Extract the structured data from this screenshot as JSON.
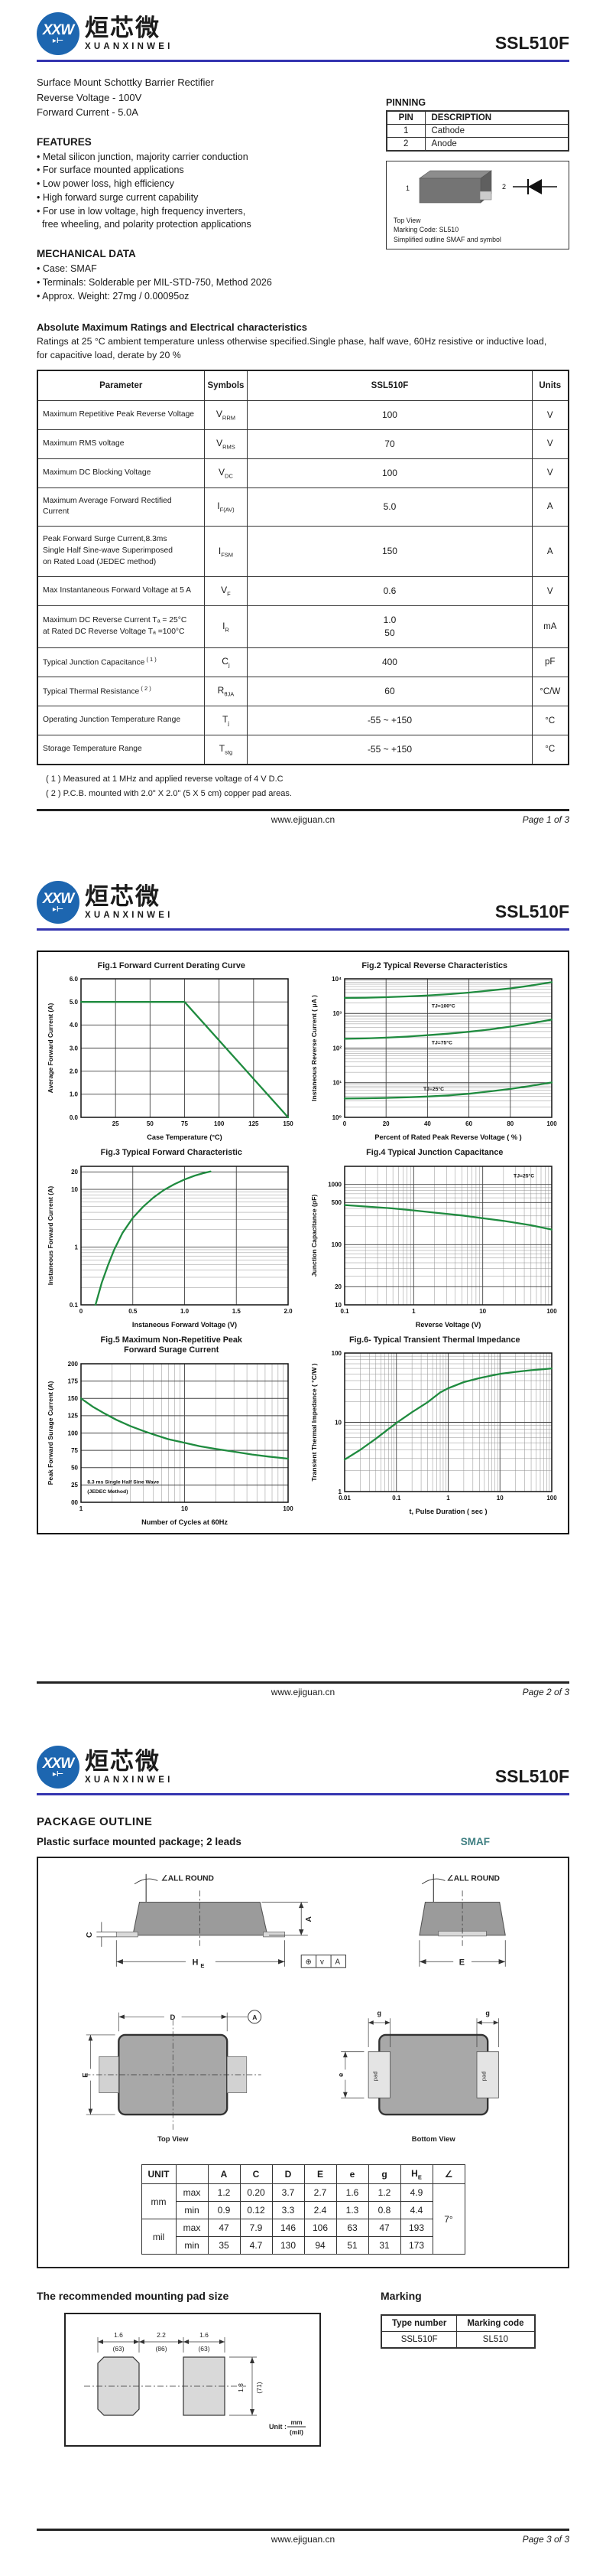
{
  "brand": {
    "logo_monogram": "XXW",
    "logo_diode": "▸⊢",
    "logo_cn": "烜芯微",
    "logo_en": "XUANXINWEI",
    "part_number": "SSL510F"
  },
  "footer": {
    "url": "www.ejiguan.cn",
    "page1": "Page  1  of  3",
    "page2": "Page  2  of  3",
    "page3": "Page  3  of  3"
  },
  "page1": {
    "intro": [
      "Surface Mount Schottky Barrier Rectifier",
      "Reverse Voltage - 100V",
      "Forward Current - 5.0A"
    ],
    "pinning": {
      "title": "PINNING",
      "headers": [
        "PIN",
        "DESCRIPTION"
      ],
      "rows": [
        [
          "1",
          "Cathode"
        ],
        [
          "2",
          "Anode"
        ]
      ],
      "pin1": "1",
      "pin2": "2",
      "captions": [
        "Top View",
        "Marking Code: SL510",
        "Simplified outline SMAF and symbol"
      ]
    },
    "features": {
      "title": "FEATURES",
      "items": [
        "• Metal silicon junction, majority carrier conduction",
        "• For surface mounted applications",
        "• Low power loss, high efficiency",
        "• High forward surge current capability",
        "• For use in low voltage, high frequency inverters,",
        "  free wheeling, and polarity protection applications"
      ]
    },
    "mechanical": {
      "title": "MECHANICAL DATA",
      "items": [
        "• Case: SMAF",
        "• Terminals: Solderable per MIL-STD-750, Method 2026",
        "• Approx. Weight: 27mg  / 0.00095oz"
      ]
    },
    "ratings": {
      "title": "Absolute Maximum Ratings and Electrical characteristics",
      "subtitle": [
        "Ratings at 25 °C ambient temperature unless otherwise specified.Single phase, half wave, 60Hz resistive or inductive load,",
        "for capacitive load, derate by 20 %"
      ],
      "headers": [
        "Parameter",
        "Symbols",
        "SSL510F",
        "Units"
      ],
      "rows": [
        {
          "param": [
            "Maximum Repetitive Peak Reverse Voltage"
          ],
          "sym": "V",
          "sub": "RRM",
          "value": [
            "100"
          ],
          "unit": "V"
        },
        {
          "param": [
            "Maximum RMS voltage"
          ],
          "sym": "V",
          "sub": "RMS",
          "value": [
            "70"
          ],
          "unit": "V"
        },
        {
          "param": [
            "Maximum DC Blocking Voltage"
          ],
          "sym": "V",
          "sub": "DC",
          "value": [
            "100"
          ],
          "unit": "V"
        },
        {
          "param": [
            "Maximum Average Forward Rectified Current"
          ],
          "sym": "I",
          "sub": "F(AV)",
          "value": [
            "5.0"
          ],
          "unit": "A"
        },
        {
          "param": [
            "Peak Forward Surge Current,8.3ms",
            "Single Half Sine-wave Superimposed",
            "on Rated Load (JEDEC method)"
          ],
          "sym": "I",
          "sub": "FSM",
          "value": [
            "150"
          ],
          "unit": "A"
        },
        {
          "param": [
            "Max Instantaneous Forward Voltage at 5 A"
          ],
          "sym": "V",
          "sub": "F",
          "value": [
            "0.6"
          ],
          "unit": "V"
        },
        {
          "param": [
            "Maximum DC Reverse Current    Tₐ = 25°C",
            "at Rated DC Reverse Voltage     Tₐ =100°C"
          ],
          "sym": "I",
          "sub": "R",
          "value": [
            "1.0",
            "50"
          ],
          "unit": "mA"
        },
        {
          "param": [
            "Typical Junction Capacitance"
          ],
          "sup": "( 1 )",
          "sym": "C",
          "sub": "j",
          "value": [
            "400"
          ],
          "unit": "pF"
        },
        {
          "param": [
            "Typical Thermal Resistance"
          ],
          "sup": "( 2 )",
          "sym": "R",
          "sub": "θJA",
          "value": [
            "60"
          ],
          "unit": "°C/W"
        },
        {
          "param": [
            "Operating Junction Temperature Range"
          ],
          "sym": "T",
          "sub": "j",
          "value": [
            "-55 ~ +150"
          ],
          "unit": "°C"
        },
        {
          "param": [
            "Storage Temperature Range"
          ],
          "sym": "T",
          "sub": "stg",
          "value": [
            "-55 ~ +150"
          ],
          "unit": "°C"
        }
      ],
      "notes": [
        "( 1 ) Measured at 1 MHz and applied reverse voltage of 4 V D.C",
        "( 2 ) P.C.B. mounted with 2.0\" X 2.0\" (5 X 5 cm) copper pad areas."
      ]
    }
  },
  "chart_data": [
    {
      "type": "line",
      "title": "Fig.1  Forward Current Derating Curve",
      "xlabel": "Case Temperature (°C)",
      "ylabel": "Average Forward Current (A)",
      "xscale": "linear",
      "yscale": "linear",
      "xlim": [
        0,
        150
      ],
      "ylim": [
        0,
        6
      ],
      "xticks": [
        25,
        50,
        75,
        100,
        125,
        150
      ],
      "xtick_labels": [
        "25",
        "50",
        "75",
        "100",
        "125",
        "150"
      ],
      "yticks": [
        0,
        1,
        2,
        3,
        4,
        5,
        6
      ],
      "ytick_labels": [
        "0.0",
        "1.0",
        "2.0",
        "3.0",
        "4.0",
        "5.0",
        "6.0"
      ],
      "grid": true,
      "legend": "none",
      "color": "#1f8b3f",
      "series": [
        {
          "name": "IF(AV)",
          "points": [
            [
              0,
              5
            ],
            [
              75,
              5
            ],
            [
              150,
              0
            ]
          ]
        }
      ],
      "annotations": []
    },
    {
      "type": "line",
      "title": "Fig.2  Typical Reverse Characteristics",
      "xlabel": "Percent of Rated Peak Reverse Voltage ( % )",
      "ylabel": "Instaneous Reverse Current ( μA )",
      "xscale": "linear",
      "yscale": "log",
      "xlim": [
        0,
        100
      ],
      "ylim": [
        1,
        10000
      ],
      "xticks": [
        0,
        20,
        40,
        60,
        80,
        100
      ],
      "xtick_labels": [
        "0",
        "20",
        "40",
        "60",
        "80",
        "100"
      ],
      "yticks": [
        1,
        10,
        100,
        1000,
        10000
      ],
      "ytick_labels": [
        "10⁰",
        "10¹",
        "10²",
        "10³",
        "10⁴"
      ],
      "grid": true,
      "legend": "inline",
      "color": "#1f8b3f",
      "series": [
        {
          "name": "TJ=100°C",
          "points": [
            [
              0,
              2800
            ],
            [
              10,
              2850
            ],
            [
              20,
              2950
            ],
            [
              30,
              3100
            ],
            [
              40,
              3300
            ],
            [
              50,
              3600
            ],
            [
              60,
              4000
            ],
            [
              70,
              4600
            ],
            [
              80,
              5300
            ],
            [
              90,
              6400
            ],
            [
              100,
              8000
            ]
          ]
        },
        {
          "name": "TJ=75°C",
          "points": [
            [
              0,
              185
            ],
            [
              10,
              190
            ],
            [
              20,
              200
            ],
            [
              30,
              215
            ],
            [
              40,
              235
            ],
            [
              50,
              260
            ],
            [
              60,
              295
            ],
            [
              70,
              345
            ],
            [
              80,
              415
            ],
            [
              90,
              520
            ],
            [
              100,
              660
            ]
          ]
        },
        {
          "name": "TJ=25°C",
          "points": [
            [
              0,
              3.5
            ],
            [
              10,
              3.55
            ],
            [
              20,
              3.65
            ],
            [
              30,
              3.8
            ],
            [
              40,
              4.0
            ],
            [
              50,
              4.3
            ],
            [
              60,
              4.8
            ],
            [
              70,
              5.6
            ],
            [
              80,
              6.6
            ],
            [
              90,
              8.1
            ],
            [
              100,
              10.2
            ]
          ]
        }
      ],
      "annotations": [
        {
          "text": "TJ=100°C",
          "x": 42,
          "y": 1500
        },
        {
          "text": "TJ=75°C",
          "x": 42,
          "y": 128
        },
        {
          "text": "TJ=25°C",
          "x": 38,
          "y": 5.9
        }
      ]
    },
    {
      "type": "line",
      "title": "Fig.3  Typical Forward Characteristic",
      "xlabel": "Instaneous Forward Voltage (V)",
      "ylabel": "Instaneous Forward Current  (A)",
      "xscale": "linear",
      "yscale": "log",
      "xlim": [
        0,
        2
      ],
      "ylim": [
        0.1,
        25
      ],
      "xticks": [
        0,
        0.5,
        1,
        1.5,
        2
      ],
      "xtick_labels": [
        "0",
        "0.5",
        "1.0",
        "1.5",
        "2.0"
      ],
      "yticks": [
        0.1,
        1,
        10,
        20
      ],
      "ytick_labels": [
        "0.1",
        "1",
        "10",
        "20"
      ],
      "grid": true,
      "legend": "none",
      "color": "#1f8b3f",
      "series": [
        {
          "name": "VF",
          "points": [
            [
              0.14,
              0.1
            ],
            [
              0.2,
              0.24
            ],
            [
              0.26,
              0.48
            ],
            [
              0.32,
              0.9
            ],
            [
              0.4,
              1.75
            ],
            [
              0.5,
              3.2
            ],
            [
              0.6,
              5.0
            ],
            [
              0.7,
              7.2
            ],
            [
              0.8,
              9.7
            ],
            [
              0.9,
              12.2
            ],
            [
              1.0,
              14.8
            ],
            [
              1.1,
              17.3
            ],
            [
              1.18,
              19.0
            ],
            [
              1.25,
              20.3
            ]
          ]
        }
      ],
      "annotations": []
    },
    {
      "type": "line",
      "title": "Fig.4  Typical Junction Capacitance",
      "xlabel": "Reverse  Voltage (V)",
      "ylabel": "Junction Capacitance (pF)",
      "xscale": "log",
      "yscale": "log",
      "xlim": [
        0.1,
        100
      ],
      "ylim": [
        10,
        2000
      ],
      "xticks": [
        0.1,
        1,
        10,
        100
      ],
      "xtick_labels": [
        "0.1",
        "1",
        "10",
        "100"
      ],
      "yticks": [
        10,
        20,
        100,
        500,
        1000
      ],
      "ytick_labels": [
        "10",
        "20",
        "100",
        "500",
        "1000"
      ],
      "grid": true,
      "legend": "inline",
      "color": "#1f8b3f",
      "series": [
        {
          "name": "Cj",
          "points": [
            [
              0.1,
              455
            ],
            [
              0.2,
              430
            ],
            [
              0.5,
              400
            ],
            [
              1,
              370
            ],
            [
              2,
              340
            ],
            [
              5,
              305
            ],
            [
              10,
              275
            ],
            [
              20,
              248
            ],
            [
              50,
              210
            ],
            [
              100,
              178
            ]
          ]
        }
      ],
      "annotations": [
        {
          "text": "TJ=25°C",
          "x": 28,
          "y": 1300
        }
      ]
    },
    {
      "type": "line",
      "title": [
        "Fig.5  Maximum Non-Repetitive Peak",
        "Forward Surage Current"
      ],
      "xlabel": "Number of Cycles at 60Hz",
      "ylabel": "Peak Forward Surage Current (A)",
      "xscale": "log",
      "yscale": "linear",
      "xlim": [
        1,
        100
      ],
      "ylim": [
        0,
        200
      ],
      "xticks": [
        1,
        10,
        100
      ],
      "xtick_labels": [
        "1",
        "10",
        "100"
      ],
      "yticks": [
        0,
        25,
        50,
        75,
        100,
        125,
        150,
        175,
        200
      ],
      "ytick_labels": [
        "00",
        "25",
        "50",
        "75",
        "100",
        "125",
        "150",
        "175",
        "200"
      ],
      "grid": true,
      "legend": "none",
      "color": "#1f8b3f",
      "series": [
        {
          "name": "IFSM",
          "points": [
            [
              1,
              150
            ],
            [
              1.3,
              138
            ],
            [
              1.7,
              128
            ],
            [
              2.2,
              119
            ],
            [
              3,
              110
            ],
            [
              4,
              103
            ],
            [
              5,
              98
            ],
            [
              7,
              91
            ],
            [
              10,
              86
            ],
            [
              14,
              81
            ],
            [
              20,
              77
            ],
            [
              30,
              73
            ],
            [
              45,
              69
            ],
            [
              65,
              66
            ],
            [
              100,
              63
            ]
          ]
        }
      ],
      "annotations": [
        {
          "text": "8.3 ms Single Half Sine Wave",
          "x": 1.15,
          "y": 27
        },
        {
          "text": "(JEDEC Method)",
          "x": 1.15,
          "y": 13
        }
      ]
    },
    {
      "type": "line",
      "title": "Fig.6- Typical Transient Thermal Impedance",
      "xlabel": "t, Pulse Duration ( sec )",
      "ylabel": "Transient Thermal Impedance ( °C/W )",
      "xscale": "log",
      "yscale": "log",
      "xlim": [
        0.01,
        100
      ],
      "ylim": [
        1,
        100
      ],
      "xticks": [
        0.01,
        0.1,
        1,
        10,
        100
      ],
      "xtick_labels": [
        "0.01",
        "0.1",
        "1",
        "10",
        "100"
      ],
      "yticks": [
        1,
        10,
        100
      ],
      "ytick_labels": [
        "1",
        "10",
        "100"
      ],
      "grid": true,
      "legend": "none",
      "color": "#1f8b3f",
      "series": [
        {
          "name": "Zth",
          "points": [
            [
              0.01,
              2.9
            ],
            [
              0.02,
              4.0
            ],
            [
              0.04,
              5.8
            ],
            [
              0.07,
              8.0
            ],
            [
              0.1,
              9.8
            ],
            [
              0.2,
              14
            ],
            [
              0.4,
              19.5
            ],
            [
              0.7,
              27
            ],
            [
              1,
              31
            ],
            [
              2,
              38
            ],
            [
              4,
              43.5
            ],
            [
              7,
              47.5
            ],
            [
              10,
              50
            ],
            [
              20,
              53.5
            ],
            [
              40,
              56.5
            ],
            [
              70,
              58.5
            ],
            [
              100,
              60
            ]
          ]
        }
      ],
      "annotations": []
    }
  ],
  "page3": {
    "title": "PACKAGE  OUTLINE",
    "subtitle": "Plastic surface mounted package; 2 leads",
    "package_name": "SMAF",
    "drawing": {
      "all_round": "∠ALL ROUND",
      "dim_A": "A",
      "dim_C": "C",
      "dim_D": "D",
      "dim_E": "E",
      "dim_e": "e",
      "dim_g": "g",
      "hE_main": "H",
      "hE_sub": "E",
      "datum_frame": [
        "⊕",
        "v",
        "A"
      ],
      "datum_circle": "A",
      "pad_label": "pad",
      "top_view": "Top View",
      "bottom_view": "Bottom  View"
    },
    "dim_table": {
      "headers": [
        "UNIT",
        "",
        "A",
        "C",
        "D",
        "E",
        "e",
        "g"
      ],
      "hE_main": "H",
      "hE_sub": "E",
      "h_angle": "∠",
      "mm_label": "mm",
      "mil_label": "mil",
      "max_label": "max",
      "min_label": "min",
      "rows": {
        "mm_max": [
          "1.2",
          "0.20",
          "3.7",
          "2.7",
          "1.6",
          "1.2",
          "4.9"
        ],
        "mm_min": [
          "0.9",
          "0.12",
          "3.3",
          "2.4",
          "1.3",
          "0.8",
          "4.4"
        ],
        "mil_max": [
          "47",
          "7.9",
          "146",
          "106",
          "63",
          "47",
          "193"
        ],
        "mil_min": [
          "35",
          "4.7",
          "130",
          "94",
          "51",
          "31",
          "173"
        ]
      },
      "angle": "7°"
    },
    "pad_section": {
      "title": "The recommended mounting pad size",
      "dims_top": [
        [
          "1.6",
          "(63)"
        ],
        [
          "2.2",
          "(86)"
        ],
        [
          "1.6",
          "(63)"
        ]
      ],
      "dim_right": [
        "1.8",
        "(71)"
      ],
      "unit_label": "Unit :",
      "unit_mm": "mm",
      "unit_mil": "(mil)"
    },
    "marking": {
      "title": "Marking",
      "headers": [
        "Type number",
        "Marking code"
      ],
      "rows": [
        [
          "SSL510F",
          "SL510"
        ]
      ]
    }
  }
}
